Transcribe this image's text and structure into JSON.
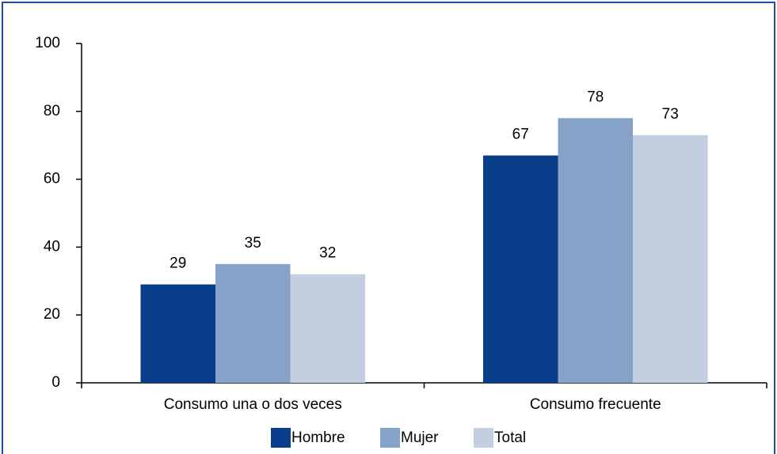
{
  "chart_data": {
    "type": "bar",
    "categories": [
      "Consumo una o dos veces",
      "Consumo frecuente"
    ],
    "series": [
      {
        "name": "Hombre",
        "color": "#083e8a",
        "values": [
          29,
          67
        ]
      },
      {
        "name": "Mujer",
        "color": "#87a2c9",
        "values": [
          35,
          78
        ]
      },
      {
        "name": "Total",
        "color": "#c3cfe0",
        "values": [
          32,
          73
        ]
      }
    ],
    "ylim": [
      0,
      100
    ],
    "yticks": [
      0,
      20,
      40,
      60,
      80,
      100
    ],
    "legend": "bottom"
  }
}
